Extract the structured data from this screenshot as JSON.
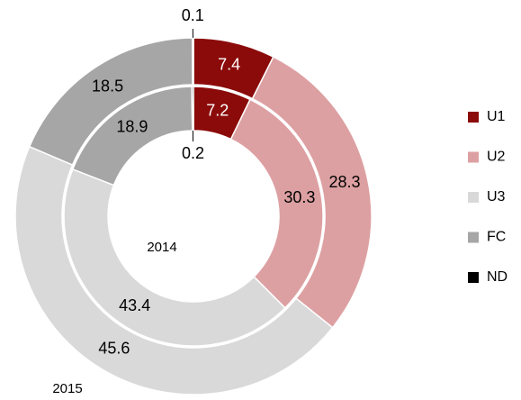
{
  "chart_data": {
    "type": "donut",
    "categories": [
      "U1",
      "U2",
      "U3",
      "FC",
      "ND"
    ],
    "colors": [
      "#8b0a0a",
      "#dda0a2",
      "#d9d9d9",
      "#a6a6a6",
      "#000000"
    ],
    "series": [
      {
        "name": "2015",
        "values": [
          7.4,
          28.3,
          45.6,
          18.5,
          0.1
        ]
      },
      {
        "name": "2014",
        "values": [
          7.2,
          30.3,
          43.4,
          18.9,
          0.2
        ]
      }
    ],
    "legend": "right"
  }
}
